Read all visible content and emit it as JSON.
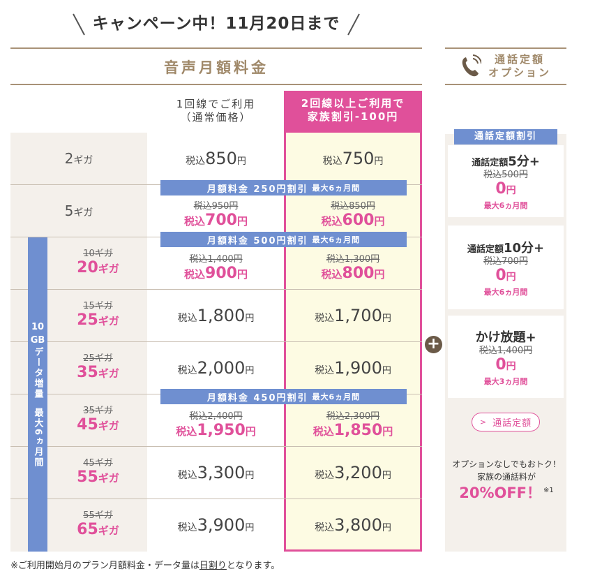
{
  "campaign": {
    "text": "キャンペーン中！11月20日まで"
  },
  "voice_header": "音声月額料金",
  "columns": {
    "normal_line1": "1回線でご利用",
    "normal_line2": "（通常価格）",
    "family_line1": "2回線以上ご利用で",
    "family_line2": "家族割引-100円"
  },
  "tax_prefix": "税込",
  "yen": "円",
  "giga_unit": "ギガ",
  "rows": [
    {
      "label": "2",
      "normal": "850",
      "family": "750"
    },
    {
      "label": "5",
      "normal_old": "税込950円",
      "normal": "700",
      "family_old": "税込850円",
      "family": "600"
    },
    {
      "label_old": "10ギガ",
      "label": "20",
      "normal_old": "税込1,400円",
      "normal": "900",
      "family_old": "税込1,300円",
      "family": "800"
    },
    {
      "label_old": "15ギガ",
      "label": "25",
      "normal": "1,800",
      "family": "1,700"
    },
    {
      "label_old": "25ギガ",
      "label": "35",
      "normal": "2,000",
      "family": "1,900"
    },
    {
      "label_old": "35ギガ",
      "label": "45",
      "normal_old": "税込2,400円",
      "normal": "1,950",
      "family_old": "税込2,300円",
      "family": "1,850"
    },
    {
      "label_old": "45ギガ",
      "label": "55",
      "normal": "3,300",
      "family": "3,200"
    },
    {
      "label_old": "55ギガ",
      "label": "65",
      "normal": "3,900",
      "family": "3,800"
    }
  ],
  "banners": [
    {
      "main": "月額料金 250円割引",
      "sub": "最大6ヵ月間"
    },
    {
      "main": "月額料金 500円割引",
      "sub": "最大6ヵ月間"
    },
    {
      "main": "月額料金 450円割引",
      "sub": "最大6ヵ月間"
    }
  ],
  "data_increase": {
    "line1": "10",
    "line2": "GB",
    "line3": "データ増量",
    "line4": "最大6ヵ月間"
  },
  "option": {
    "header_line1": "通話定額",
    "header_line2": "オプション",
    "badge": "通話定額割引",
    "cards": [
      {
        "title_pre": "通話定額",
        "title_big": "5分+",
        "old": "税込500円",
        "price": "0",
        "max": "最大6ヵ月間"
      },
      {
        "title_pre": "通話定額",
        "title_big": "10分+",
        "old": "税込700円",
        "price": "0",
        "max": "最大6ヵ月間"
      },
      {
        "title_pre": "",
        "title_big": "かけ放題+",
        "old": "税込1,400円",
        "price": "0",
        "max": "最大3ヵ月間"
      }
    ],
    "link": "通話定額",
    "note_line1": "オプションなしでもおトク！",
    "note_line2": "家族の通話料が",
    "off": "20%OFF！",
    "off_mark": "※1"
  },
  "footnote": {
    "pre": "※ご利用開始月のプラン月額料金・データ量は",
    "link": "日割り",
    "post": "となります。"
  },
  "colors": {
    "pink": "#e0509a",
    "blue": "#6f8fd0",
    "beige": "#f4f0eb",
    "cream": "#fdfbe3",
    "brown": "#a0896a"
  }
}
